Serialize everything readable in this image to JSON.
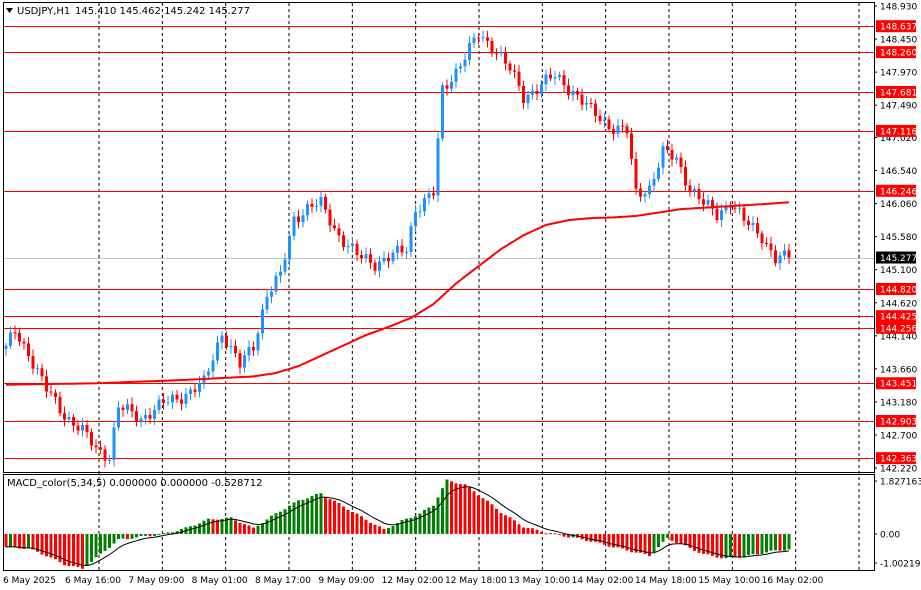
{
  "header": {
    "symbol_label": "USDJPY,H1",
    "ohlc_text": "145.410 145.462 145.242 145.277",
    "menu_icon": "triangle-down-icon"
  },
  "indicator": {
    "label": "MACD_color(5,34,5) 0.000000 0.000000 -0.528712",
    "scale_labels": [
      "1.827163",
      "0.00",
      "-1.00219"
    ]
  },
  "colors": {
    "bull": "#1e90ff",
    "bear": "#ff0000",
    "ma": "#ff0000",
    "level": "#ff0000",
    "grid": "#000000",
    "hist_up": "#008000",
    "hist_down": "#ff0000",
    "signal": "#000000"
  },
  "chart_data": [
    {
      "type": "candlestick",
      "symbol": "USDJPY",
      "timeframe": "H1",
      "current_price": 145.277,
      "ylim": [
        142.22,
        148.93
      ],
      "y_ticks": [
        148.93,
        148.45,
        147.97,
        147.49,
        147.02,
        146.54,
        146.06,
        145.58,
        145.1,
        144.62,
        144.14,
        143.66,
        143.18,
        142.7,
        142.22
      ],
      "y_tick_labels": [
        "148.930",
        "148.450",
        "147.970",
        "147.490",
        "147.020",
        "146.540",
        "146.060",
        "145.580",
        "145.100",
        "144.620",
        "144.140",
        "143.660",
        "143.180",
        "142.700",
        "142.220"
      ],
      "x_tick_labels": [
        "6 May 2025",
        "6 May 16:00",
        "7 May 09:00",
        "8 May 01:00",
        "8 May 17:00",
        "9 May 09:00",
        "12 May 02:00",
        "12 May 18:00",
        "13 May 10:00",
        "14 May 02:00",
        "14 May 18:00",
        "15 May 10:00",
        "16 May 02:00"
      ],
      "horizontal_levels": [
        148.637,
        148.26,
        147.681,
        147.116,
        146.246,
        144.82,
        144.425,
        144.256,
        143.451,
        142.903,
        142.363
      ],
      "horizontal_level_labels": [
        "148.637",
        "148.260",
        "147.681",
        "147.116",
        "146.246",
        "144.820",
        "144.425",
        "144.256",
        "143.451",
        "142.903",
        "142.363"
      ],
      "current_price_label": "145.277",
      "grid": "vertical dotted",
      "close_anchors": [
        [
          0,
          143.95
        ],
        [
          2,
          144.2
        ],
        [
          5,
          143.9
        ],
        [
          9,
          143.35
        ],
        [
          13,
          143.0
        ],
        [
          17,
          142.75
        ],
        [
          20,
          142.5
        ],
        [
          23,
          142.4
        ],
        [
          25,
          143.1
        ],
        [
          30,
          142.95
        ],
        [
          35,
          143.15
        ],
        [
          40,
          143.3
        ],
        [
          44,
          143.45
        ],
        [
          48,
          144.2
        ],
        [
          52,
          143.7
        ],
        [
          55,
          144.0
        ],
        [
          58,
          144.75
        ],
        [
          61,
          145.0
        ],
        [
          64,
          145.85
        ],
        [
          67,
          146.0
        ],
        [
          70,
          146.05
        ],
        [
          74,
          145.6
        ],
        [
          78,
          145.3
        ],
        [
          82,
          145.2
        ],
        [
          86,
          145.3
        ],
        [
          89,
          145.4
        ],
        [
          91,
          146.0
        ],
        [
          95,
          146.2
        ],
        [
          97,
          147.7
        ],
        [
          101,
          148.1
        ],
        [
          105,
          148.5
        ],
        [
          109,
          148.3
        ],
        [
          112,
          148.0
        ],
        [
          115,
          147.6
        ],
        [
          119,
          147.8
        ],
        [
          122,
          147.9
        ],
        [
          126,
          147.7
        ],
        [
          130,
          147.4
        ],
        [
          134,
          147.2
        ],
        [
          138,
          147.1
        ],
        [
          140,
          146.2
        ],
        [
          143,
          146.3
        ],
        [
          146,
          146.8
        ],
        [
          149,
          146.7
        ],
        [
          152,
          146.3
        ],
        [
          155,
          146.05
        ],
        [
          158,
          145.9
        ],
        [
          161,
          146.1
        ],
        [
          164,
          145.8
        ],
        [
          168,
          145.6
        ],
        [
          171,
          145.25
        ],
        [
          174,
          145.277
        ]
      ],
      "ma_anchors": [
        [
          0,
          143.43
        ],
        [
          20,
          143.45
        ],
        [
          40,
          143.5
        ],
        [
          55,
          143.55
        ],
        [
          60,
          143.6
        ],
        [
          65,
          143.7
        ],
        [
          70,
          143.85
        ],
        [
          75,
          144.0
        ],
        [
          80,
          144.15
        ],
        [
          85,
          144.27
        ],
        [
          90,
          144.4
        ],
        [
          95,
          144.6
        ],
        [
          100,
          144.9
        ],
        [
          105,
          145.15
        ],
        [
          110,
          145.4
        ],
        [
          115,
          145.6
        ],
        [
          120,
          145.75
        ],
        [
          125,
          145.82
        ],
        [
          130,
          145.85
        ],
        [
          135,
          145.86
        ],
        [
          140,
          145.88
        ],
        [
          145,
          145.93
        ],
        [
          150,
          145.98
        ],
        [
          155,
          146.0
        ],
        [
          160,
          146.02
        ],
        [
          170,
          146.06
        ],
        [
          174,
          146.08
        ]
      ]
    },
    {
      "type": "histogram",
      "name": "MACD_color(5,34,5)",
      "values_text": "0.000000 0.000000 -0.528712",
      "ylim": [
        -1.00219,
        1.827163
      ],
      "y_ticks": [
        1.827163,
        0.0,
        -1.00219
      ],
      "hist_anchors": [
        [
          0,
          -0.45
        ],
        [
          5,
          -0.5
        ],
        [
          9,
          -0.75
        ],
        [
          13,
          -1.05
        ],
        [
          17,
          -1.2
        ],
        [
          21,
          -0.7
        ],
        [
          25,
          -0.2
        ],
        [
          30,
          -0.1
        ],
        [
          35,
          -0.0
        ],
        [
          40,
          0.2
        ],
        [
          45,
          0.5
        ],
        [
          50,
          0.55
        ],
        [
          55,
          0.2
        ],
        [
          60,
          0.7
        ],
        [
          65,
          1.15
        ],
        [
          70,
          1.4
        ],
        [
          75,
          0.95
        ],
        [
          80,
          0.5
        ],
        [
          84,
          0.15
        ],
        [
          88,
          0.45
        ],
        [
          92,
          0.7
        ],
        [
          95,
          1.0
        ],
        [
          98,
          1.85
        ],
        [
          102,
          1.7
        ],
        [
          106,
          1.25
        ],
        [
          110,
          0.75
        ],
        [
          115,
          0.25
        ],
        [
          120,
          0.05
        ],
        [
          125,
          -0.1
        ],
        [
          130,
          -0.25
        ],
        [
          135,
          -0.45
        ],
        [
          139,
          -0.6
        ],
        [
          143,
          -0.75
        ],
        [
          147,
          -0.15
        ],
        [
          150,
          -0.35
        ],
        [
          155,
          -0.7
        ],
        [
          160,
          -0.85
        ],
        [
          165,
          -0.75
        ],
        [
          170,
          -0.6
        ],
        [
          174,
          -0.53
        ]
      ]
    }
  ]
}
